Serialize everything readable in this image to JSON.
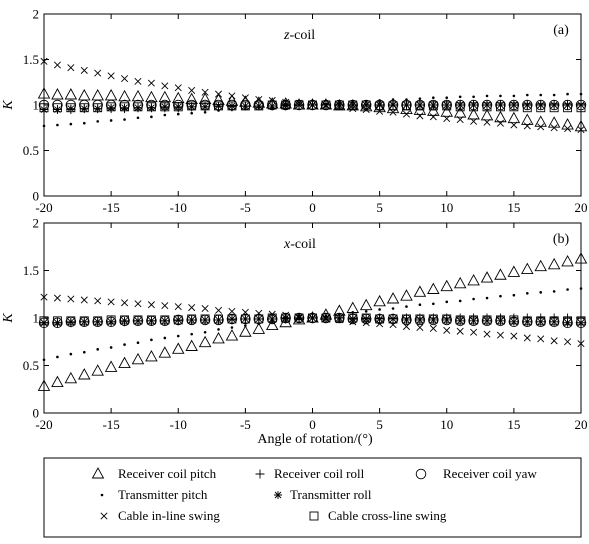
{
  "figure": {
    "xlabel": "Angle of rotation/(°)",
    "legend": [
      {
        "key": "rcp",
        "label": "Receiver coil pitch",
        "marker": "triangle-icon"
      },
      {
        "key": "rcr",
        "label": "Receiver coil roll",
        "marker": "plus-icon"
      },
      {
        "key": "rcy",
        "label": "Receiver coil yaw",
        "marker": "circle-icon"
      },
      {
        "key": "tp",
        "label": "Transmitter pitch",
        "marker": "dot-icon"
      },
      {
        "key": "tr",
        "label": "Transmitter roll",
        "marker": "asterisk-icon"
      },
      {
        "key": "cil",
        "label": "Cable in-line swing",
        "marker": "cross-icon"
      },
      {
        "key": "ccl",
        "label": "Cable cross-line swing",
        "marker": "square-icon"
      }
    ]
  },
  "chart_data": [
    {
      "type": "scatter",
      "panel": "(a)",
      "coil_prefix": "z",
      "coil_suffix": "-coil",
      "ylabel": "K",
      "xlim": [
        -20,
        20
      ],
      "ylim": [
        0,
        2
      ],
      "xticks": [
        -20,
        -15,
        -10,
        -5,
        0,
        5,
        10,
        15,
        20
      ],
      "yticks": [
        0,
        0.5,
        1,
        1.5,
        2
      ],
      "ytick_labels": [
        "0",
        "0.5",
        "1",
        "1.5",
        "2"
      ],
      "x": [
        -20,
        -19,
        -18,
        -17,
        -16,
        -15,
        -14,
        -13,
        -12,
        -11,
        -10,
        -9,
        -8,
        -7,
        -6,
        -5,
        -4,
        -3,
        -2,
        -1,
        0,
        1,
        2,
        3,
        4,
        5,
        6,
        7,
        8,
        9,
        10,
        11,
        12,
        13,
        14,
        15,
        16,
        17,
        18,
        19,
        20
      ],
      "series": [
        {
          "key": "rcp",
          "values": [
            1.12,
            1.11,
            1.11,
            1.1,
            1.1,
            1.1,
            1.09,
            1.09,
            1.08,
            1.08,
            1.07,
            1.06,
            1.06,
            1.05,
            1.04,
            1.03,
            1.02,
            1.01,
            1.01,
            1.0,
            1.0,
            1.0,
            0.99,
            0.99,
            0.98,
            0.97,
            0.96,
            0.95,
            0.94,
            0.93,
            0.92,
            0.91,
            0.89,
            0.88,
            0.86,
            0.85,
            0.83,
            0.81,
            0.8,
            0.78,
            0.76
          ]
        },
        {
          "key": "rcr",
          "values": [
            0.95,
            0.95,
            0.95,
            0.96,
            0.96,
            0.96,
            0.96,
            0.97,
            0.97,
            0.97,
            0.97,
            0.98,
            0.98,
            0.98,
            0.98,
            0.99,
            0.99,
            0.99,
            0.99,
            1.0,
            1.0,
            1.0,
            1.0,
            1.0,
            1.0,
            1.0,
            1.0,
            1.0,
            1.0,
            1.0,
            1.0,
            1.0,
            1.0,
            1.0,
            1.0,
            1.0,
            1.0,
            1.0,
            1.0,
            1.0,
            1.0
          ]
        },
        {
          "key": "rcy",
          "values": [
            1.0,
            1.0,
            1.0,
            1.0,
            1.0,
            1.0,
            1.0,
            1.0,
            1.0,
            1.0,
            1.0,
            1.0,
            1.0,
            1.0,
            1.0,
            1.0,
            1.0,
            1.0,
            1.0,
            1.0,
            1.0,
            1.0,
            1.0,
            1.0,
            1.0,
            1.0,
            1.0,
            1.0,
            1.0,
            1.0,
            1.0,
            1.0,
            1.0,
            1.0,
            1.0,
            1.0,
            1.0,
            1.0,
            1.0,
            1.0,
            1.0
          ]
        },
        {
          "key": "tp",
          "values": [
            0.77,
            0.78,
            0.79,
            0.8,
            0.82,
            0.83,
            0.84,
            0.86,
            0.87,
            0.89,
            0.9,
            0.91,
            0.92,
            0.94,
            0.95,
            0.96,
            0.97,
            0.98,
            0.99,
            1.0,
            1.0,
            1.01,
            1.02,
            1.03,
            1.04,
            1.05,
            1.06,
            1.06,
            1.07,
            1.08,
            1.08,
            1.09,
            1.09,
            1.1,
            1.1,
            1.1,
            1.11,
            1.11,
            1.11,
            1.12,
            1.12
          ]
        },
        {
          "key": "tr",
          "values": [
            0.95,
            0.95,
            0.96,
            0.96,
            0.96,
            0.97,
            0.97,
            0.97,
            0.97,
            0.98,
            0.98,
            0.98,
            0.98,
            0.99,
            0.99,
            0.99,
            0.99,
            0.99,
            1.0,
            1.0,
            1.0,
            1.0,
            1.0,
            1.0,
            1.0,
            1.0,
            1.0,
            1.0,
            1.0,
            1.0,
            1.0,
            1.0,
            1.0,
            1.0,
            1.0,
            1.0,
            1.0,
            1.0,
            1.0,
            1.0,
            1.0
          ]
        },
        {
          "key": "cil",
          "values": [
            1.48,
            1.44,
            1.41,
            1.38,
            1.35,
            1.32,
            1.29,
            1.26,
            1.24,
            1.21,
            1.19,
            1.16,
            1.14,
            1.12,
            1.1,
            1.08,
            1.06,
            1.05,
            1.03,
            1.02,
            1.0,
            0.99,
            0.98,
            0.96,
            0.95,
            0.93,
            0.92,
            0.9,
            0.88,
            0.87,
            0.85,
            0.84,
            0.82,
            0.81,
            0.8,
            0.78,
            0.77,
            0.76,
            0.75,
            0.74,
            0.73
          ]
        },
        {
          "key": "ccl",
          "values": [
            0.97,
            0.97,
            0.97,
            0.97,
            0.97,
            0.98,
            0.98,
            0.98,
            0.98,
            0.98,
            0.98,
            0.99,
            0.99,
            0.99,
            0.99,
            0.99,
            0.99,
            1.0,
            1.0,
            1.0,
            1.0,
            1.0,
            1.0,
            1.0,
            1.0,
            0.99,
            0.99,
            0.99,
            0.99,
            0.99,
            0.99,
            0.98,
            0.98,
            0.98,
            0.98,
            0.98,
            0.97,
            0.97,
            0.97,
            0.97,
            0.97
          ]
        }
      ]
    },
    {
      "type": "scatter",
      "panel": "(b)",
      "coil_prefix": "x",
      "coil_suffix": "-coil",
      "ylabel": "K",
      "xlim": [
        -20,
        20
      ],
      "ylim": [
        0,
        2
      ],
      "xticks": [
        -20,
        -15,
        -10,
        -5,
        0,
        5,
        10,
        15,
        20
      ],
      "yticks": [
        0,
        0.5,
        1,
        1.5,
        2
      ],
      "ytick_labels": [
        "0",
        "0.5",
        "1",
        "1.5",
        "2"
      ],
      "x": [
        -20,
        -19,
        -18,
        -17,
        -16,
        -15,
        -14,
        -13,
        -12,
        -11,
        -10,
        -9,
        -8,
        -7,
        -6,
        -5,
        -4,
        -3,
        -2,
        -1,
        0,
        1,
        2,
        3,
        4,
        5,
        6,
        7,
        8,
        9,
        10,
        11,
        12,
        13,
        14,
        15,
        16,
        17,
        18,
        19,
        20
      ],
      "series": [
        {
          "key": "rcp",
          "values": [
            0.28,
            0.32,
            0.36,
            0.4,
            0.44,
            0.48,
            0.52,
            0.56,
            0.59,
            0.63,
            0.67,
            0.7,
            0.74,
            0.78,
            0.81,
            0.85,
            0.88,
            0.92,
            0.95,
            0.98,
            1.0,
            1.03,
            1.07,
            1.1,
            1.13,
            1.17,
            1.2,
            1.23,
            1.27,
            1.3,
            1.33,
            1.36,
            1.39,
            1.42,
            1.45,
            1.48,
            1.51,
            1.54,
            1.56,
            1.59,
            1.62
          ]
        },
        {
          "key": "rcr",
          "values": [
            0.95,
            0.95,
            0.95,
            0.96,
            0.96,
            0.96,
            0.96,
            0.97,
            0.97,
            0.97,
            0.97,
            0.98,
            0.98,
            0.98,
            0.98,
            0.99,
            0.99,
            0.99,
            0.99,
            1.0,
            1.0,
            1.0,
            1.0,
            1.0,
            1.0,
            1.0,
            1.0,
            1.0,
            1.0,
            1.0,
            1.0,
            1.0,
            1.0,
            1.0,
            1.0,
            1.0,
            1.0,
            1.0,
            1.0,
            1.0,
            1.0
          ]
        },
        {
          "key": "rcy",
          "values": [
            0.95,
            0.95,
            0.96,
            0.96,
            0.96,
            0.96,
            0.97,
            0.97,
            0.97,
            0.97,
            0.98,
            0.98,
            0.98,
            0.98,
            0.99,
            0.99,
            0.99,
            0.99,
            1.0,
            1.0,
            1.0,
            1.0,
            1.0,
            0.99,
            0.99,
            0.99,
            0.99,
            0.98,
            0.98,
            0.98,
            0.98,
            0.97,
            0.97,
            0.97,
            0.97,
            0.96,
            0.96,
            0.96,
            0.96,
            0.95,
            0.95
          ]
        },
        {
          "key": "tp",
          "values": [
            0.56,
            0.59,
            0.62,
            0.64,
            0.67,
            0.69,
            0.72,
            0.74,
            0.77,
            0.79,
            0.81,
            0.83,
            0.85,
            0.88,
            0.9,
            0.92,
            0.94,
            0.96,
            0.97,
            0.99,
            1.0,
            1.02,
            1.04,
            1.06,
            1.07,
            1.09,
            1.1,
            1.12,
            1.14,
            1.15,
            1.17,
            1.18,
            1.2,
            1.21,
            1.23,
            1.24,
            1.26,
            1.27,
            1.28,
            1.3,
            1.31
          ]
        },
        {
          "key": "tr",
          "values": [
            0.95,
            0.95,
            0.96,
            0.96,
            0.96,
            0.96,
            0.97,
            0.97,
            0.97,
            0.97,
            0.98,
            0.98,
            0.98,
            0.98,
            0.99,
            0.99,
            0.99,
            0.99,
            1.0,
            1.0,
            1.0,
            1.0,
            1.0,
            0.99,
            0.99,
            0.99,
            0.99,
            0.98,
            0.98,
            0.98,
            0.98,
            0.97,
            0.97,
            0.97,
            0.97,
            0.96,
            0.96,
            0.96,
            0.96,
            0.95,
            0.95
          ]
        },
        {
          "key": "cil",
          "values": [
            1.22,
            1.21,
            1.2,
            1.19,
            1.18,
            1.17,
            1.16,
            1.15,
            1.14,
            1.13,
            1.12,
            1.11,
            1.1,
            1.08,
            1.07,
            1.06,
            1.05,
            1.04,
            1.03,
            1.01,
            1.0,
            0.99,
            0.98,
            0.96,
            0.95,
            0.94,
            0.93,
            0.91,
            0.9,
            0.89,
            0.87,
            0.86,
            0.85,
            0.83,
            0.82,
            0.81,
            0.79,
            0.78,
            0.76,
            0.75,
            0.73
          ]
        },
        {
          "key": "ccl",
          "values": [
            0.97,
            0.97,
            0.97,
            0.97,
            0.97,
            0.98,
            0.98,
            0.98,
            0.98,
            0.98,
            0.98,
            0.99,
            0.99,
            0.99,
            0.99,
            0.99,
            0.99,
            1.0,
            1.0,
            1.0,
            1.0,
            1.0,
            1.0,
            1.0,
            1.0,
            0.99,
            0.99,
            0.99,
            0.99,
            0.99,
            0.99,
            0.98,
            0.98,
            0.98,
            0.98,
            0.98,
            0.97,
            0.97,
            0.97,
            0.97,
            0.97
          ]
        }
      ]
    }
  ]
}
